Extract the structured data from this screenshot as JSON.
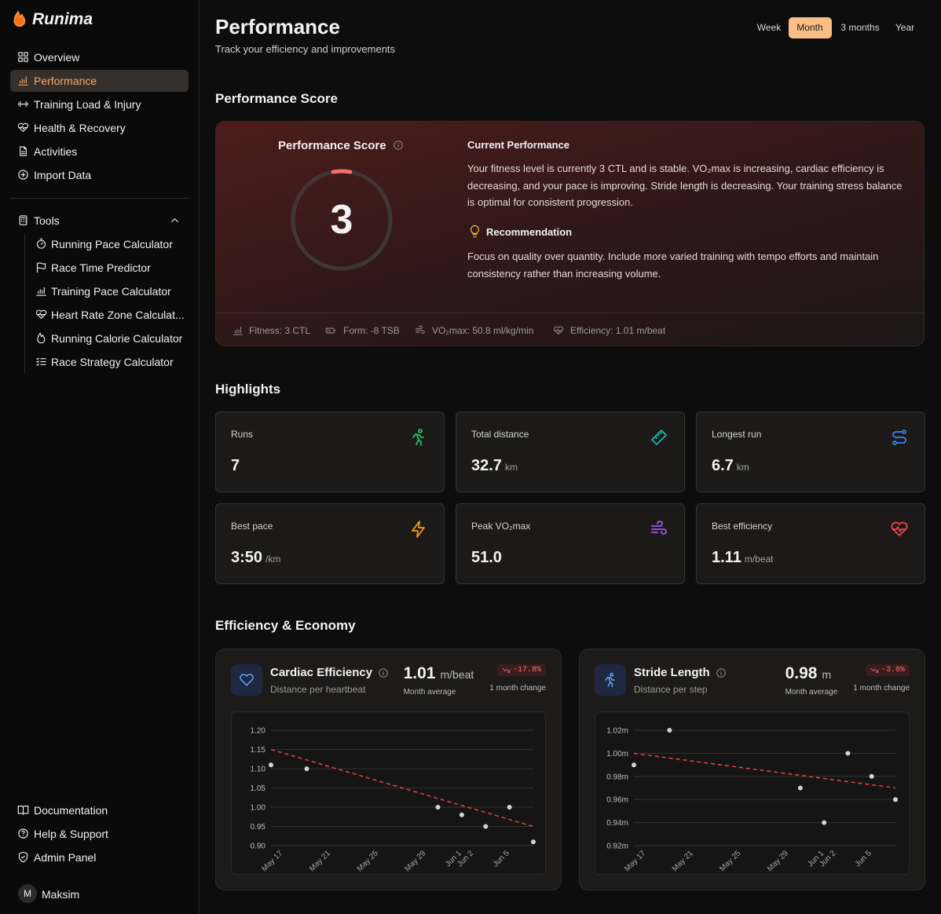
{
  "sidebar": {
    "brand": "Runima",
    "active_nav": 1,
    "nav": [
      "Overview",
      "Performance",
      "Training Load & Injury",
      "Health & Recovery",
      "Activities",
      "Import Data"
    ],
    "tools_title": "Tools",
    "tools": [
      "Running Pace Calculator",
      "Race Time Predictor",
      "Training Pace Calculator",
      "Heart Rate Zone Calculat...",
      "Running Calorie Calculator",
      "Race Strategy Calculator"
    ],
    "footer": [
      "Documentation",
      "Help & Support",
      "Admin Panel"
    ],
    "user": {
      "initial": "M",
      "name": "Maksim"
    }
  },
  "header": {
    "title": "Performance",
    "subtitle": "Track your efficiency and improvements",
    "periods": [
      "Week",
      "Month",
      "3 months",
      "Year"
    ],
    "active_period": 1
  },
  "performance_score": {
    "section_title": "Performance Score",
    "card_title": "Performance Score",
    "score": 3,
    "current_title": "Current Performance",
    "current_text": "Your fitness level is currently 3 CTL and is stable. VO₂max is increasing, cardiac efficiency is decreasing, and your pace is improving. Stride length is decreasing. Your training stress balance is optimal for consistent progression.",
    "recommendation_title": "Recommendation",
    "recommendation_text": "Focus on quality over quantity. Include more varied training with tempo efforts and maintain consistency rather than increasing volume.",
    "stats": [
      "Fitness: 3 CTL",
      "Form: -8 TSB",
      "VO₂max: 50.8 ml/kg/min",
      "Efficiency: 1.01 m/beat"
    ]
  },
  "highlights": {
    "title": "Highlights",
    "cards": [
      {
        "label": "Runs",
        "value": 7
      },
      {
        "label": "Total distance",
        "value": 32.7,
        "unit": "km"
      },
      {
        "label": "Longest run",
        "value": 6.7,
        "unit": "km"
      },
      {
        "label": "Best pace",
        "value": "3:50",
        "unit": "/km"
      },
      {
        "label": "Peak VO₂max",
        "value": "51.0"
      },
      {
        "label": "Best efficiency",
        "value": 1.11,
        "unit": "m/beat"
      }
    ]
  },
  "efficiency": {
    "title": "Efficiency & Economy",
    "cards": [
      {
        "title": "Cardiac Efficiency",
        "subtitle": "Distance per heartbeat",
        "value": 1.01,
        "unit": "m/beat",
        "value_caption": "Month average",
        "change": "-17.8%",
        "change_caption": "1 month change"
      },
      {
        "title": "Stride Length",
        "subtitle": "Distance per step",
        "value": 0.98,
        "unit": "m",
        "value_caption": "Month average",
        "change": "-3.0%",
        "change_caption": "1 month change"
      }
    ]
  },
  "chart_data": [
    {
      "type": "scatter",
      "x": [
        "May 16",
        "May 19",
        "May 30",
        "Jun 1",
        "Jun 3",
        "Jun 5",
        "Jun 7"
      ],
      "series": [
        {
          "color": "#d4d4d4",
          "values": [
            1.11,
            1.1,
            1.0,
            0.98,
            0.95,
            1.0,
            0.91
          ]
        },
        {
          "type": "line",
          "color": "#ef4444",
          "dashed": true,
          "x": [
            "May 16",
            "Jun 7"
          ],
          "values": [
            1.15,
            0.95
          ]
        }
      ],
      "xlim": [
        "May 16",
        "Jun 7"
      ],
      "xticks": [
        "May 17",
        "May 21",
        "May 25",
        "May 29",
        "Jun 1",
        "Jun 2",
        "Jun 5"
      ],
      "ylim": [
        0.9,
        1.2
      ],
      "yticks": [
        {
          "value": 0.9,
          "label": "0.90"
        },
        0.95,
        {
          "value": 1,
          "label": "1.00"
        },
        1.05,
        {
          "value": 1.1,
          "label": "1.10"
        },
        1.15,
        {
          "value": 1.2,
          "label": "1.20"
        }
      ],
      "grid": true
    },
    {
      "type": "scatter",
      "x": [
        "May 16",
        "May 19",
        "May 30",
        "Jun 1",
        "Jun 3",
        "Jun 5",
        "Jun 7"
      ],
      "series": [
        {
          "color": "#d4d4d4",
          "values": [
            0.99,
            1.02,
            0.97,
            0.94,
            1.0,
            0.98,
            0.96
          ]
        },
        {
          "type": "line",
          "color": "#ef4444",
          "dashed": true,
          "x": [
            "May 16",
            "Jun 7"
          ],
          "values": [
            1.0,
            0.97
          ]
        }
      ],
      "xlim": [
        "May 16",
        "Jun 7"
      ],
      "xticks": [
        "May 17",
        "May 21",
        "May 25",
        "May 29",
        "Jun 1",
        "Jun 2",
        "Jun 5"
      ],
      "ylim": [
        0.92,
        1.02
      ],
      "yticks": [
        {
          "value": 0.92,
          "label": "0.92m"
        },
        {
          "value": 0.94,
          "label": "0.94m"
        },
        {
          "value": 0.96,
          "label": "0.96m"
        },
        {
          "value": 0.98,
          "label": "0.98m"
        },
        {
          "value": 1.0,
          "label": "1.00m"
        },
        {
          "value": 1.02,
          "label": "1.02m"
        }
      ],
      "grid": true
    }
  ]
}
